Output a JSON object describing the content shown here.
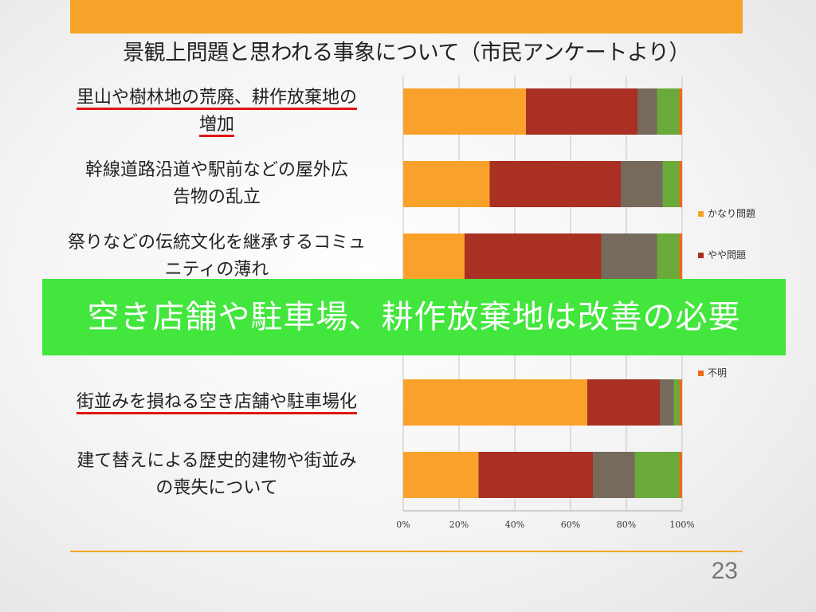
{
  "slide": {
    "title": "景観上問題と思われる事象について（市民アンケートより）",
    "overlay_text": "空き店舗や駐車場、耕作放棄地は改善の必要",
    "page_number": "23",
    "accent_color": "#f7a228",
    "overlay_color": "#42e63c",
    "underline_color": "#e01515"
  },
  "categories": [
    {
      "lines": [
        "里山や樹林地の荒廃、耕作放棄地の",
        "増加"
      ],
      "underlined": true
    },
    {
      "lines": [
        "幹線道路沿道や駅前などの屋外広",
        "告物の乱立"
      ],
      "underlined": false
    },
    {
      "lines": [
        "祭りなどの伝統文化を継承するコミュ",
        "ニティの薄れ"
      ],
      "underlined": false
    },
    {
      "lines": [],
      "underlined": false
    },
    {
      "lines": [
        "街並みを損ねる空き店舗や駐車場化"
      ],
      "underlined": true
    },
    {
      "lines": [
        "建て替えによる歴史的建物や街並み",
        "の喪失について"
      ],
      "underlined": false
    }
  ],
  "chart_data": {
    "type": "bar",
    "orientation": "horizontal",
    "stacked": "percent",
    "categories": [
      "里山や樹林地の荒廃、耕作放棄地の増加",
      "幹線道路沿道や駅前などの屋外広告物の乱立",
      "祭りなどの伝統文化を継承するコミュニティの薄れ",
      "",
      "街並みを損ねる空き店舗や駐車場化",
      "建て替えによる歴史的建物や街並みの喪失について"
    ],
    "series": [
      {
        "name": "かなり問題",
        "color": "#f9a12a",
        "values": [
          44,
          31,
          22,
          0,
          66,
          27
        ]
      },
      {
        "name": "やや問題",
        "color": "#a93023",
        "values": [
          40,
          47,
          49,
          0,
          26,
          41
        ]
      },
      {
        "name": "",
        "color": "#756a5c",
        "values": [
          7,
          15,
          20,
          0,
          5,
          15
        ]
      },
      {
        "name": "",
        "color": "#6aaa3a",
        "values": [
          8,
          6,
          8,
          0,
          2,
          16
        ]
      },
      {
        "name": "不明",
        "color": "#ee6a18",
        "values": [
          1,
          1,
          1,
          0,
          1,
          1
        ]
      }
    ],
    "x_ticks": [
      "0%",
      "20%",
      "40%",
      "60%",
      "80%",
      "100%"
    ],
    "xlim": [
      0,
      100
    ],
    "grid": true,
    "legend": "right"
  }
}
